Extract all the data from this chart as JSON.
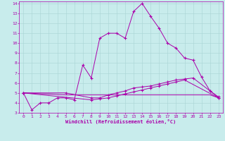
{
  "xlabel": "Windchill (Refroidissement éolien,°C)",
  "background_color": "#c8ecec",
  "grid_color": "#a8d4d4",
  "line_color": "#aa00aa",
  "xlim": [
    -0.5,
    23.5
  ],
  "ylim": [
    3,
    14.2
  ],
  "yticks": [
    3,
    4,
    5,
    6,
    7,
    8,
    9,
    10,
    11,
    12,
    13,
    14
  ],
  "xticks": [
    0,
    1,
    2,
    3,
    4,
    5,
    6,
    7,
    8,
    9,
    10,
    11,
    12,
    13,
    14,
    15,
    16,
    17,
    18,
    19,
    20,
    21,
    22,
    23
  ],
  "series": [
    {
      "x": [
        0,
        1,
        2,
        3,
        4,
        5,
        6,
        7,
        8,
        9,
        10,
        11,
        12,
        13,
        14,
        15,
        16,
        17,
        18,
        19,
        20,
        21,
        22,
        23
      ],
      "y": [
        5.0,
        3.3,
        4.0,
        4.0,
        4.5,
        4.5,
        4.3,
        7.8,
        6.5,
        10.5,
        11.0,
        11.0,
        10.5,
        13.2,
        14.0,
        12.7,
        11.5,
        10.0,
        9.5,
        8.5,
        8.3,
        6.6,
        5.2,
        4.6
      ],
      "markers": true
    },
    {
      "x": [
        0,
        5,
        8,
        9,
        10,
        11,
        12,
        13,
        14,
        15,
        16,
        17,
        18,
        19,
        20,
        22,
        23
      ],
      "y": [
        5.0,
        5.0,
        4.5,
        4.5,
        4.8,
        5.0,
        5.2,
        5.5,
        5.6,
        5.7,
        5.9,
        6.1,
        6.3,
        6.4,
        6.5,
        5.2,
        4.5
      ],
      "markers": true
    },
    {
      "x": [
        0,
        8,
        9,
        10,
        11,
        12,
        13,
        14,
        15,
        16,
        17,
        18,
        19,
        23
      ],
      "y": [
        5.0,
        4.3,
        4.4,
        4.5,
        4.7,
        4.9,
        5.1,
        5.3,
        5.5,
        5.7,
        5.9,
        6.1,
        6.3,
        4.5
      ],
      "markers": true
    },
    {
      "x": [
        0,
        5,
        20,
        22,
        23
      ],
      "y": [
        5.0,
        4.8,
        4.8,
        4.8,
        4.5
      ],
      "markers": false
    }
  ]
}
